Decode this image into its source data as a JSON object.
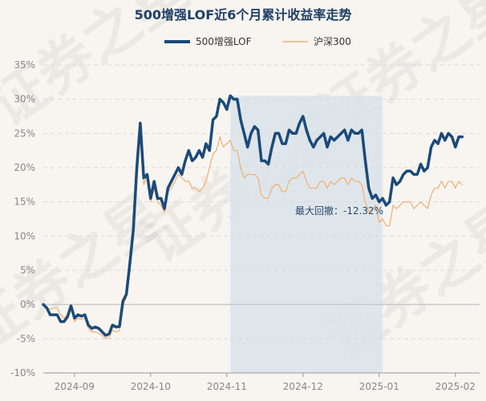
{
  "colors": {
    "fund": "#1b4a7a",
    "index": "#f0b27a",
    "title": "#1f3f66",
    "drawdown_fill": "#dbe3ea",
    "grid": "#d9d9d9",
    "zero_line": "#c8c8c8"
  },
  "watermark": "证券之星",
  "chart_data": {
    "type": "line",
    "title": "500增强LOF近6个月累计收益率走势",
    "xlabel": "",
    "ylabel": "",
    "ylim": [
      -10,
      35
    ],
    "y_ticks": [
      35,
      30,
      25,
      20,
      15,
      10,
      5,
      0,
      -5,
      -10
    ],
    "y_tick_labels": [
      "35%",
      "30%",
      "25%",
      "20%",
      "15%",
      "10%",
      "5%",
      "0%",
      "-5%",
      "-10%"
    ],
    "x_ticks": [
      9,
      31,
      53,
      75,
      97,
      119
    ],
    "x_tick_labels": [
      "2024-09",
      "2024-10",
      "2024-11",
      "2024-12",
      "2025-01",
      "2025-02"
    ],
    "x_range": [
      0,
      126
    ],
    "grid": true,
    "legend_position": "top-center",
    "annotation": {
      "text": "最大回撤：-12.32%",
      "drawdown_start_index": 54,
      "drawdown_end_index": 98
    },
    "series": [
      {
        "name": "500增强LOF",
        "values": [
          0,
          -0.5,
          -1.5,
          -1.5,
          -1.5,
          -2.5,
          -2.5,
          -1.8,
          -0.2,
          -2,
          -1.5,
          -1.7,
          -1.5,
          -3,
          -3.5,
          -3.3,
          -3.5,
          -4,
          -4.5,
          -4.3,
          -3,
          -3.3,
          -3.2,
          0.5,
          1.5,
          6,
          11,
          20,
          26.5,
          18.5,
          19,
          15.5,
          18,
          15.5,
          15.5,
          14,
          17,
          18,
          19,
          20,
          19,
          21,
          22.5,
          21,
          21.5,
          22.5,
          21.5,
          23.5,
          22.5,
          27,
          27.5,
          30,
          29.5,
          28.5,
          30.5,
          30,
          30,
          27,
          25,
          23,
          25,
          26,
          25.5,
          21,
          21,
          20.5,
          23,
          25,
          25,
          23.5,
          23.5,
          25.5,
          25,
          25,
          26.5,
          27.5,
          25.5,
          24,
          23,
          24,
          24.5,
          25,
          23,
          24.5,
          24,
          24.5,
          25,
          25.5,
          24,
          25.5,
          25,
          25,
          25.5,
          21,
          17,
          15.5,
          16,
          15,
          15.5,
          14.5,
          15,
          18.5,
          17.5,
          18,
          19,
          19.5,
          19.5,
          19,
          19,
          20.5,
          19.5,
          20,
          23,
          24,
          23.5,
          25,
          24,
          25,
          24.5,
          23,
          24.5,
          24.5
        ],
        "color": "#1b4a7a"
      },
      {
        "name": "沪深300",
        "values": [
          0,
          -0.5,
          -0.7,
          -0.5,
          -0.5,
          -1.5,
          -2,
          -1.5,
          -0.5,
          -2.5,
          -2,
          -2.2,
          -2,
          -3.5,
          -4,
          -4,
          -4.2,
          -4.5,
          -5,
          -4.8,
          -3.8,
          -4,
          -3.8,
          0,
          1,
          5,
          10,
          18,
          25.5,
          17.5,
          19,
          15,
          17,
          15,
          14.5,
          13.5,
          16.5,
          17,
          18,
          19,
          18.5,
          18,
          18,
          17,
          17,
          16.5,
          17,
          18,
          20,
          22,
          22.5,
          24.5,
          23,
          23.5,
          24,
          22.5,
          22.5,
          20,
          18.5,
          19,
          19,
          19,
          18.5,
          16,
          15.5,
          15.5,
          17,
          17.5,
          17.5,
          16.5,
          16.5,
          18,
          18.5,
          18.5,
          19,
          19.5,
          18,
          17,
          17,
          17,
          18,
          18,
          17,
          18,
          17.5,
          18,
          18.5,
          18.5,
          17.5,
          18.5,
          18,
          18,
          17.5,
          15,
          13.5,
          14,
          14.5,
          12,
          12.5,
          11.5,
          11.5,
          14.5,
          14,
          14.5,
          15,
          15,
          15,
          14,
          14.5,
          15,
          14.5,
          14,
          16,
          17,
          17,
          18,
          17,
          18,
          18,
          17,
          18,
          17.5
        ],
        "color": "#f0b27a"
      }
    ]
  }
}
